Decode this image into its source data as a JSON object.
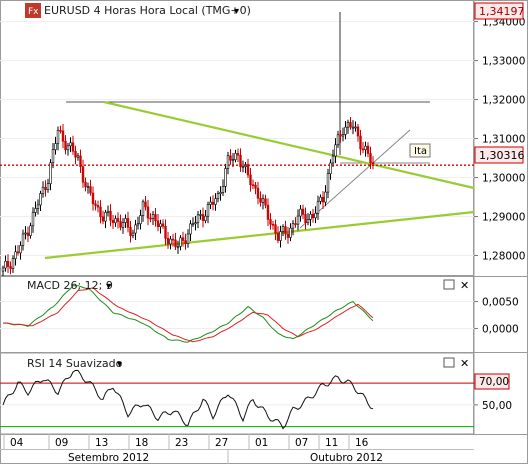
{
  "window": {
    "app_badge": "Fx",
    "symbol_title": "EURUSD 4 Horas Hora Local (TMG+0)",
    "dropdown_glyph": "▾"
  },
  "price_panel": {
    "current_price_label": "1,34197",
    "last_price_label": "1,30316",
    "annotation": "Ita",
    "colors": {
      "accent": "#cc0000",
      "trendline": "#99cc33",
      "up": "#000000",
      "down": "#cc0000"
    }
  },
  "macd_panel": {
    "title": "MACD 26; 12; 9",
    "colors": {
      "macd": "#1a8f1a",
      "signal": "#dd2222"
    }
  },
  "rsi_panel": {
    "title": "RSI 14 Suavizado",
    "level_label": "70,00",
    "colors": {
      "rsi": "#111111",
      "upper": "#cc0000",
      "lower": "#00aa00"
    }
  },
  "panel_buttons": [
    "□",
    "✕"
  ],
  "chart_data": [
    {
      "type": "candlestick",
      "title": "EURUSD 4 Horas Hora Local (TMG+0)",
      "ylim": [
        1.275,
        1.344
      ],
      "y_ticks": [
        "1,34000",
        "1,33000",
        "1,32000",
        "1,31000",
        "1,30000",
        "1,29000",
        "1,28000"
      ],
      "y_tick_values": [
        1.34,
        1.33,
        1.32,
        1.31,
        1.3,
        1.29,
        1.28
      ],
      "x_ticks": [
        "04",
        "09",
        "13",
        "18",
        "23",
        "27",
        "01",
        "07",
        "11",
        "16"
      ],
      "x_months": [
        "Setembro 2012",
        "Outubro 2012"
      ],
      "current_price": 1.34197,
      "last_price": 1.30316,
      "pivots": [
        [
          0,
          1.276
        ],
        [
          6,
          1.281
        ],
        [
          12,
          1.29
        ],
        [
          18,
          1.3
        ],
        [
          22,
          1.312
        ],
        [
          26,
          1.308
        ],
        [
          30,
          1.305
        ],
        [
          34,
          1.296
        ],
        [
          40,
          1.29
        ],
        [
          46,
          1.289
        ],
        [
          52,
          1.286
        ],
        [
          56,
          1.292
        ],
        [
          60,
          1.29
        ],
        [
          64,
          1.286
        ],
        [
          70,
          1.282
        ],
        [
          76,
          1.288
        ],
        [
          82,
          1.292
        ],
        [
          86,
          1.295
        ],
        [
          90,
          1.304
        ],
        [
          94,
          1.306
        ],
        [
          98,
          1.3
        ],
        [
          102,
          1.296
        ],
        [
          106,
          1.29
        ],
        [
          110,
          1.285
        ],
        [
          114,
          1.286
        ],
        [
          118,
          1.29
        ],
        [
          124,
          1.29
        ],
        [
          128,
          1.295
        ],
        [
          132,
          1.306
        ],
        [
          136,
          1.313
        ],
        [
          140,
          1.313
        ],
        [
          144,
          1.308
        ],
        [
          148,
          1.303
        ]
      ]
    },
    {
      "type": "line",
      "title": "MACD 26; 12; 9",
      "ylim": [
        -0.004,
        0.009
      ],
      "y_ticks": [
        "0,0050",
        "0,0000"
      ],
      "y_tick_values": [
        0.005,
        0.0
      ],
      "series": [
        {
          "name": "MACD",
          "pivots": [
            [
              0,
              0.001
            ],
            [
              10,
              0.0005
            ],
            [
              20,
              0.004
            ],
            [
              28,
              0.008
            ],
            [
              34,
              0.0075
            ],
            [
              44,
              0.003
            ],
            [
              56,
              0.001
            ],
            [
              66,
              -0.002
            ],
            [
              74,
              -0.0025
            ],
            [
              82,
              -0.001
            ],
            [
              90,
              0.001
            ],
            [
              98,
              0.004
            ],
            [
              104,
              0.002
            ],
            [
              110,
              -0.001
            ],
            [
              116,
              -0.002
            ],
            [
              124,
              0.0005
            ],
            [
              134,
              0.0035
            ],
            [
              140,
              0.005
            ],
            [
              148,
              0.0015
            ]
          ]
        },
        {
          "name": "Signal",
          "pivots": [
            [
              0,
              0.001
            ],
            [
              12,
              0.0005
            ],
            [
              22,
              0.003
            ],
            [
              30,
              0.007
            ],
            [
              36,
              0.0075
            ],
            [
              46,
              0.004
            ],
            [
              58,
              0.0015
            ],
            [
              68,
              -0.0012
            ],
            [
              76,
              -0.0025
            ],
            [
              84,
              -0.0015
            ],
            [
              92,
              0.0005
            ],
            [
              100,
              0.003
            ],
            [
              106,
              0.0025
            ],
            [
              112,
              0.0
            ],
            [
              118,
              -0.0015
            ],
            [
              126,
              0.0
            ],
            [
              136,
              0.003
            ],
            [
              142,
              0.0045
            ],
            [
              148,
              0.002
            ]
          ]
        }
      ]
    },
    {
      "type": "line",
      "title": "RSI 14 Suavizado",
      "ylim": [
        25,
        95
      ],
      "y_ticks": [
        "70,00",
        "50,00"
      ],
      "y_tick_values": [
        70,
        50
      ],
      "levels": [
        70,
        30
      ],
      "series": [
        {
          "name": "RSI",
          "pivots": [
            [
              0,
              50
            ],
            [
              6,
              70
            ],
            [
              10,
              62
            ],
            [
              16,
              75
            ],
            [
              22,
              62
            ],
            [
              28,
              82
            ],
            [
              34,
              72
            ],
            [
              40,
              55
            ],
            [
              44,
              68
            ],
            [
              50,
              42
            ],
            [
              56,
              52
            ],
            [
              62,
              38
            ],
            [
              68,
              45
            ],
            [
              74,
              32
            ],
            [
              80,
              55
            ],
            [
              84,
              40
            ],
            [
              90,
              62
            ],
            [
              96,
              38
            ],
            [
              100,
              55
            ],
            [
              106,
              40
            ],
            [
              112,
              30
            ],
            [
              116,
              45
            ],
            [
              122,
              55
            ],
            [
              128,
              68
            ],
            [
              134,
              75
            ],
            [
              140,
              68
            ],
            [
              146,
              52
            ],
            [
              148,
              48
            ]
          ]
        }
      ]
    }
  ]
}
